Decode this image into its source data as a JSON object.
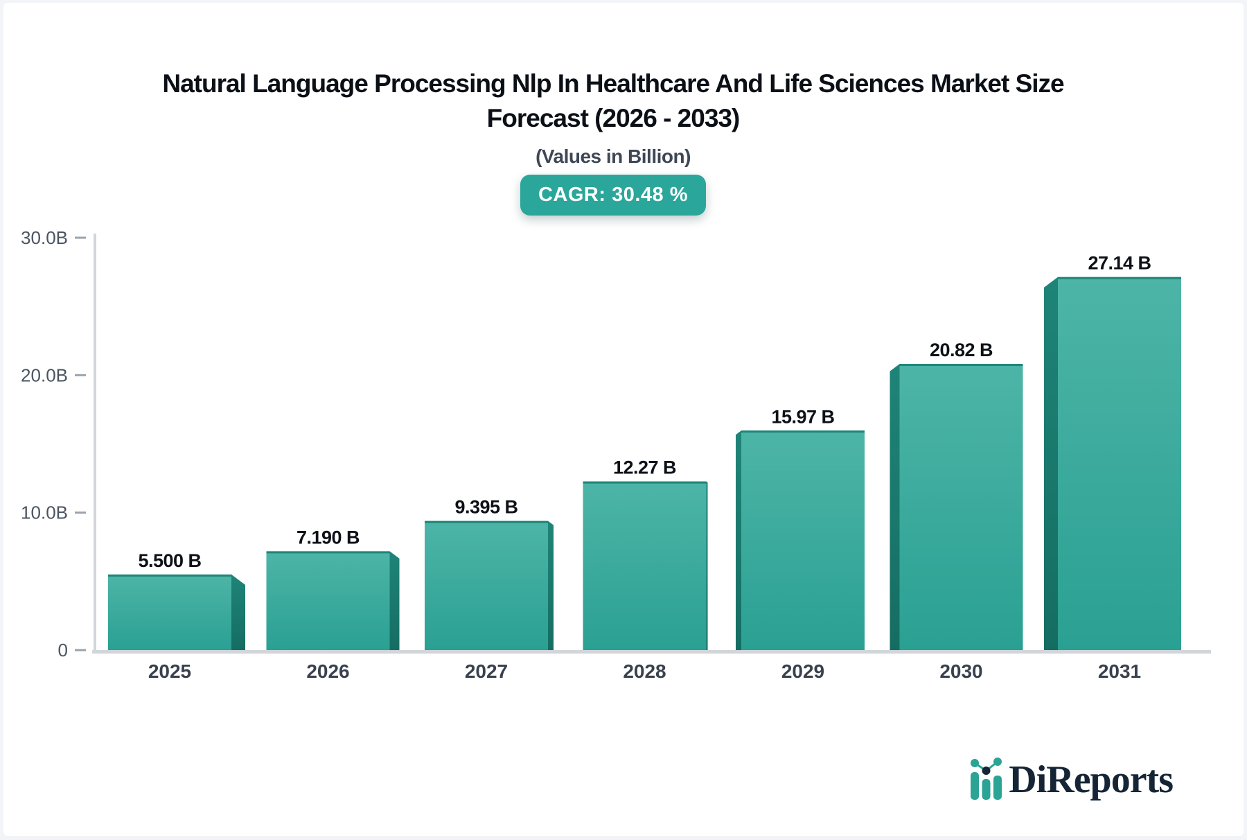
{
  "header": {
    "title_line1": "Natural Language Processing Nlp In Healthcare And Life Sciences Market Size",
    "title_line2": "Forecast (2026 - 2033)",
    "subtitle": "(Values in Billion)",
    "cagr_badge": "CAGR: 30.48 %"
  },
  "chart_data": {
    "type": "bar",
    "title": "Natural Language Processing Nlp In Healthcare And Life Sciences Market Size Forecast (2026 - 2033)",
    "subtitle": "(Values in Billion)",
    "cagr": "30.48%",
    "categories": [
      "2025",
      "2026",
      "2027",
      "2028",
      "2029",
      "2030",
      "2031"
    ],
    "values": [
      5.5,
      7.19,
      9.395,
      12.27,
      15.97,
      20.82,
      27.14
    ],
    "value_labels": [
      "5.500 B",
      "7.190 B",
      "9.395 B",
      "12.27 B",
      "15.97 B",
      "20.82 B",
      "27.14 B"
    ],
    "unit": "Billion",
    "xlabel": "",
    "ylabel": "",
    "ylim": [
      0,
      30
    ],
    "y_ticks": [
      {
        "value": 0,
        "label": "0"
      },
      {
        "value": 10,
        "label": "10.0B"
      },
      {
        "value": 20,
        "label": "20.0B"
      },
      {
        "value": 30,
        "label": "30.0B"
      }
    ],
    "grid": false,
    "legend": false,
    "bar_style": "3d-extruded-toward-center",
    "colors": {
      "accent_teal": "#2ba69a",
      "bar_face_top": "#4db5a7",
      "bar_face_bottom": "#2aa093",
      "bar_side_top": "#1f8478",
      "bar_side_bottom": "#156d62",
      "bar_top_edge": "#1e8579",
      "axis_line": "#d2d5da",
      "tick_mark": "#9aa3ac",
      "y_tick_label": "#4a5461",
      "x_tick_label": "#39414e",
      "value_label": "#0d1117",
      "title": "#0b0f16",
      "subtitle": "#3e4756",
      "badge_text": "#ffffff",
      "logo_navy": "#152536",
      "page_bg": "#f2f4f7",
      "card_bg": "#ffffff"
    }
  },
  "footer": {
    "brand": "DiReports"
  }
}
